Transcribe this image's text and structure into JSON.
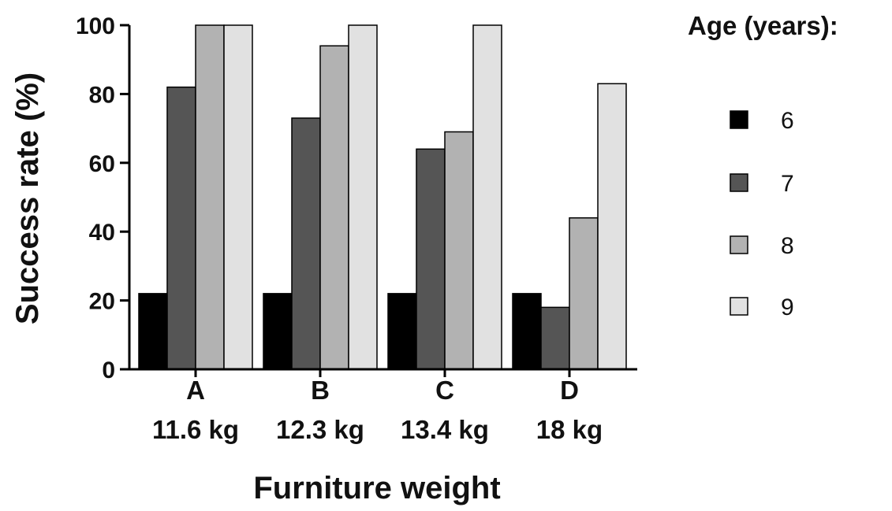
{
  "chart_data": {
    "type": "bar",
    "title": "",
    "xlabel": "Furniture weight",
    "ylabel": "Success rate (%)",
    "ylim": [
      0,
      100
    ],
    "yticks": [
      0,
      20,
      40,
      60,
      80,
      100
    ],
    "grid": false,
    "legend_position": "right",
    "categories": [
      {
        "letter": "A",
        "weight": "11.6 kg"
      },
      {
        "letter": "B",
        "weight": "12.3 kg"
      },
      {
        "letter": "C",
        "weight": "13.4 kg"
      },
      {
        "letter": "D",
        "weight": "18 kg"
      }
    ],
    "legend_title": "Age (years):",
    "series": [
      {
        "name": "6",
        "color": "#000000",
        "values": [
          22,
          22,
          22,
          22
        ]
      },
      {
        "name": "7",
        "color": "#555555",
        "values": [
          82,
          73,
          64,
          18
        ]
      },
      {
        "name": "8",
        "color": "#b2b2b2",
        "values": [
          100,
          94,
          69,
          44
        ]
      },
      {
        "name": "9",
        "color": "#e1e1e1",
        "values": [
          100,
          100,
          100,
          83
        ]
      }
    ]
  }
}
